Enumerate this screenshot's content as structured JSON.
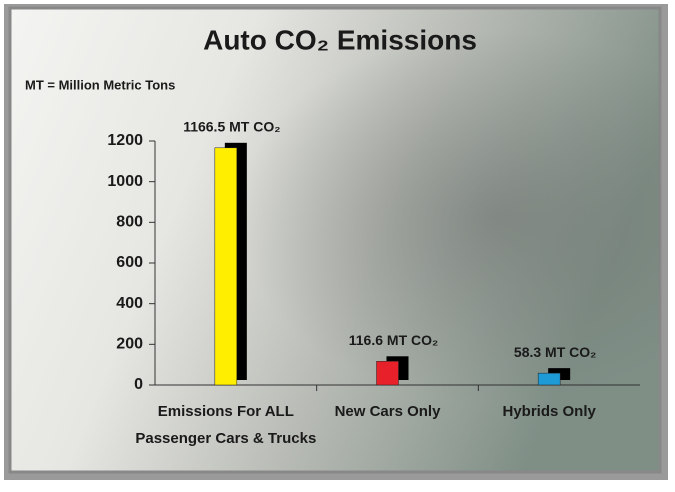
{
  "chart_data": {
    "type": "bar",
    "title": "Auto CO₂ Emissions",
    "subtitle": "MT = Million Metric Tons",
    "categories": [
      [
        "Emissions For ALL",
        "Passenger Cars & Trucks"
      ],
      [
        "New Cars Only"
      ],
      [
        "Hybrids Only"
      ]
    ],
    "values": [
      1166.5,
      116.6,
      58.3
    ],
    "value_labels": [
      "1166.5 MT CO₂",
      "116.6 MT CO₂",
      "58.3 MT CO₂"
    ],
    "colors": [
      "#ffee00",
      "#e8202a",
      "#1e9ad6"
    ],
    "ylim": [
      0,
      1200
    ],
    "yticks": [
      0,
      200,
      400,
      600,
      800,
      1000,
      1200
    ]
  }
}
